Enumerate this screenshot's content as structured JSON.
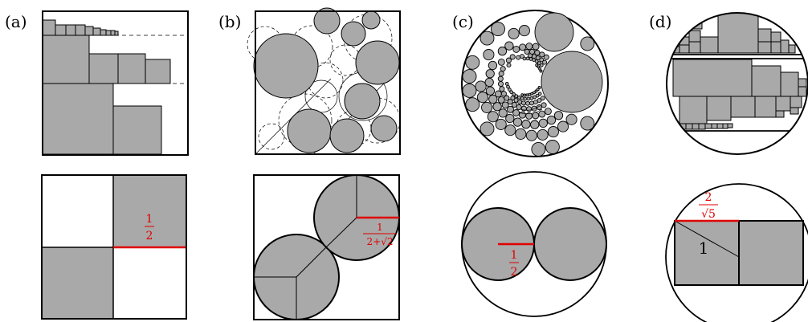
{
  "panels": [
    {
      "label": "(a)",
      "fraction": {
        "num": "1",
        "den": "2"
      }
    },
    {
      "label": "(b)",
      "fraction": {
        "num": "1",
        "den": "2+√2"
      }
    },
    {
      "label": "(c)",
      "fraction": {
        "num": "1",
        "den": "2"
      }
    },
    {
      "label": "(d)",
      "fraction": {
        "num": "2",
        "den": "√5"
      },
      "side_label": "1"
    }
  ],
  "colors": {
    "fill": "#a9a9a9",
    "stroke": "#000000",
    "highlight": "#e00000"
  }
}
